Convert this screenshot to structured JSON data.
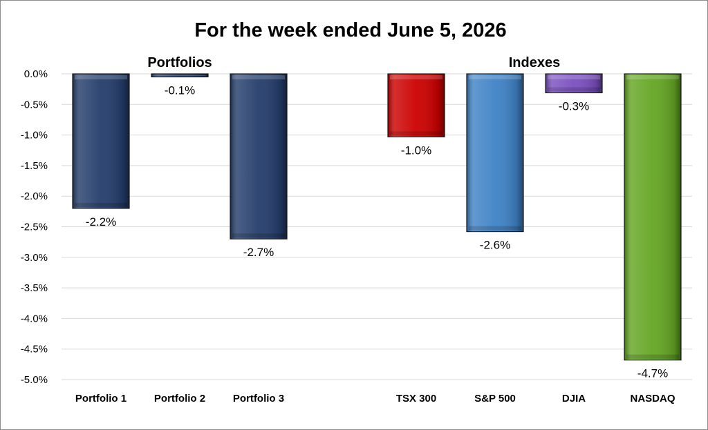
{
  "chart_data": {
    "type": "bar",
    "title": "For the week ended June 5, 2026",
    "groups": [
      {
        "label": "Portfolios",
        "categories": [
          "Portfolio 1",
          "Portfolio 2",
          "Portfolio 3"
        ]
      },
      {
        "label": "Indexes",
        "categories": [
          "TSX 300",
          "S&P 500",
          "DJIA",
          "NASDAQ"
        ]
      }
    ],
    "categories": [
      "Portfolio 1",
      "Portfolio 2",
      "Portfolio 3",
      "",
      "TSX 300",
      "S&P 500",
      "DJIA",
      "NASDAQ"
    ],
    "values": [
      -2.2,
      -0.05,
      -2.7,
      null,
      -1.03,
      -2.58,
      -0.31,
      -4.68
    ],
    "data_labels": [
      "-2.2%",
      "-0.1%",
      "-2.7%",
      "",
      "-1.0%",
      "-2.6%",
      "-0.3%",
      "-4.7%"
    ],
    "colors": [
      "#243d6b",
      "#243d6b",
      "#243d6b",
      "",
      "#cc0000",
      "#3f82c6",
      "#7a4fc0",
      "#64a623"
    ],
    "ylim": [
      -5.0,
      0.0
    ],
    "yticks": [
      0.0,
      -0.5,
      -1.0,
      -1.5,
      -2.0,
      -2.5,
      -3.0,
      -3.5,
      -4.0,
      -4.5,
      -5.0
    ],
    "ytick_labels": [
      "0.0%",
      "-0.5%",
      "-1.0%",
      "-1.5%",
      "-2.0%",
      "-2.5%",
      "-3.0%",
      "-3.5%",
      "-4.0%",
      "-4.5%",
      "-5.0%"
    ],
    "grid": true,
    "legend": "none"
  }
}
